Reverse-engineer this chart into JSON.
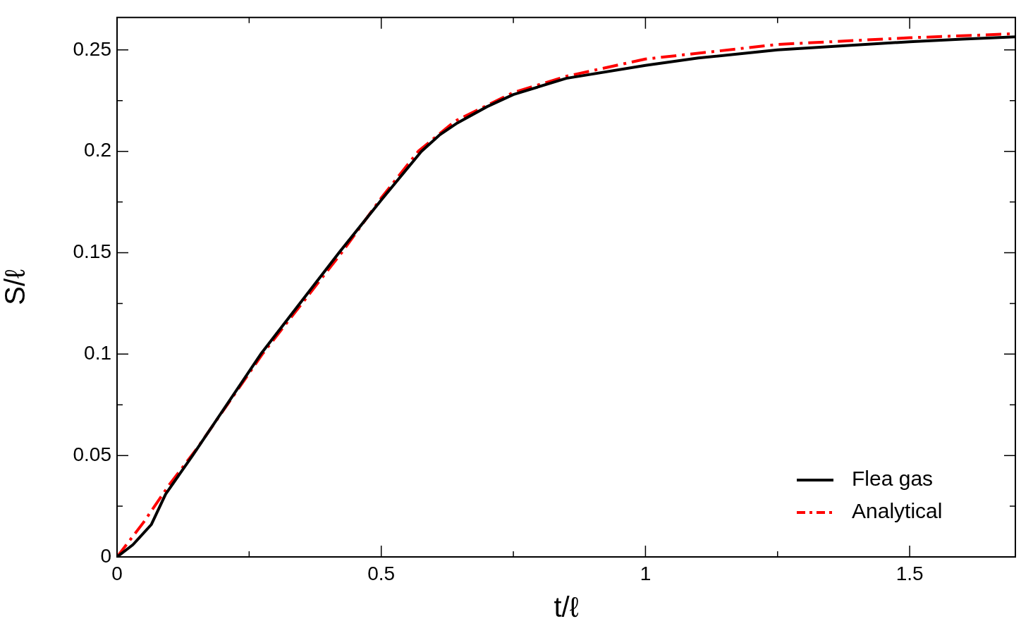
{
  "chart_data": {
    "type": "line",
    "xlabel": "t/ℓ",
    "ylabel": "S/ℓ",
    "xlim": [
      0,
      1.7
    ],
    "ylim": [
      0,
      0.266
    ],
    "xticks": [
      0,
      {
        "value": 0.25,
        "label": null
      },
      0.5,
      {
        "value": 0.75,
        "label": null
      },
      1,
      {
        "value": 1.25,
        "label": null
      },
      1.5
    ],
    "yticks": [
      0,
      {
        "value": 0.025,
        "label": null
      },
      0.05,
      {
        "value": 0.075,
        "label": null
      },
      0.1,
      {
        "value": 0.125,
        "label": null
      },
      0.15,
      {
        "value": 0.175,
        "label": null
      },
      0.2,
      {
        "value": 0.225,
        "label": null
      },
      0.25
    ],
    "legend": "bottom right",
    "marker": "none",
    "series": [
      {
        "name": "Flea gas",
        "color": "#000000",
        "line_style": "solid",
        "x": [
          0,
          0.03,
          0.065,
          0.092,
          0.143,
          0.272,
          0.42,
          0.5,
          0.576,
          0.61,
          0.644,
          0.7,
          0.75,
          0.85,
          1.0,
          1.1,
          1.25,
          1.4,
          1.5,
          1.6,
          1.7
        ],
        "values": [
          0,
          0.006,
          0.016,
          0.031,
          0.05,
          0.1,
          0.15,
          0.176,
          0.2,
          0.208,
          0.214,
          0.222,
          0.228,
          0.236,
          0.2424,
          0.246,
          0.25,
          0.2525,
          0.254,
          0.2553,
          0.2565
        ]
      },
      {
        "name": "Analytical",
        "color": "#ff0000",
        "line_style": "dashed",
        "x": [
          0,
          0.05,
          0.1,
          0.15,
          0.275,
          0.425,
          0.5,
          0.57,
          0.64,
          0.75,
          0.85,
          1.0,
          1.25,
          1.5,
          1.7
        ],
        "values": [
          0,
          0.017,
          0.036,
          0.053,
          0.1,
          0.15,
          0.177,
          0.2,
          0.215,
          0.229,
          0.237,
          0.2455,
          0.2527,
          0.256,
          0.258
        ]
      }
    ]
  }
}
